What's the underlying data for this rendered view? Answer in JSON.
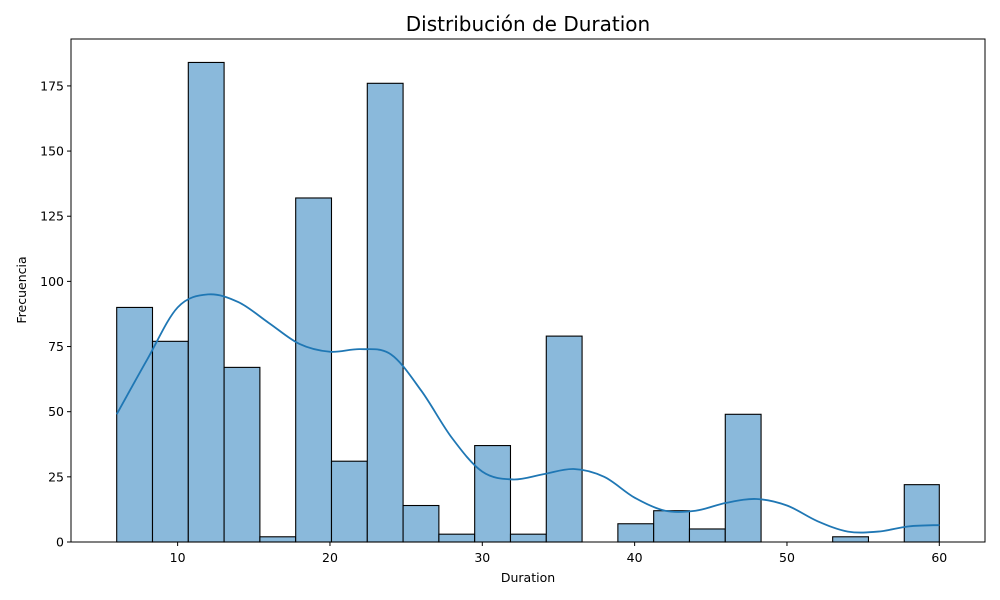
{
  "chart_data": {
    "type": "bar",
    "title": "Distribución de Duration",
    "xlabel": "Duration",
    "ylabel": "Frecuencia",
    "xlim": [
      3.0,
      63.0
    ],
    "ylim": [
      0,
      193
    ],
    "xticks": [
      10,
      20,
      30,
      40,
      50,
      60
    ],
    "yticks": [
      0,
      25,
      50,
      75,
      100,
      125,
      150,
      175
    ],
    "grid": false,
    "bins": [
      {
        "x0": 6.0,
        "x1": 8.35,
        "value": 90
      },
      {
        "x0": 8.35,
        "x1": 10.7,
        "value": 77
      },
      {
        "x0": 10.7,
        "x1": 13.05,
        "value": 184
      },
      {
        "x0": 13.05,
        "x1": 15.4,
        "value": 67
      },
      {
        "x0": 15.4,
        "x1": 17.75,
        "value": 2
      },
      {
        "x0": 17.75,
        "x1": 20.1,
        "value": 132
      },
      {
        "x0": 20.1,
        "x1": 22.45,
        "value": 31
      },
      {
        "x0": 22.45,
        "x1": 24.8,
        "value": 176
      },
      {
        "x0": 24.8,
        "x1": 27.15,
        "value": 14
      },
      {
        "x0": 27.15,
        "x1": 29.5,
        "value": 3
      },
      {
        "x0": 29.5,
        "x1": 31.85,
        "value": 37
      },
      {
        "x0": 31.85,
        "x1": 34.2,
        "value": 3
      },
      {
        "x0": 34.2,
        "x1": 36.55,
        "value": 79
      },
      {
        "x0": 36.55,
        "x1": 38.9,
        "value": 0
      },
      {
        "x0": 38.9,
        "x1": 41.25,
        "value": 7
      },
      {
        "x0": 41.25,
        "x1": 43.6,
        "value": 12
      },
      {
        "x0": 43.6,
        "x1": 45.95,
        "value": 5
      },
      {
        "x0": 45.95,
        "x1": 48.3,
        "value": 49
      },
      {
        "x0": 48.3,
        "x1": 50.65,
        "value": 0
      },
      {
        "x0": 50.65,
        "x1": 53.0,
        "value": 0
      },
      {
        "x0": 53.0,
        "x1": 55.35,
        "value": 2
      },
      {
        "x0": 55.35,
        "x1": 57.7,
        "value": 0
      },
      {
        "x0": 57.7,
        "x1": 60.0,
        "value": 22
      }
    ],
    "kde": {
      "x": [
        6,
        8,
        10,
        12,
        14,
        16,
        18,
        20,
        22,
        24,
        26,
        28,
        30,
        32,
        34,
        36,
        38,
        40,
        42,
        44,
        46,
        48,
        50,
        52,
        54,
        56,
        58,
        60
      ],
      "y": [
        49,
        70,
        90,
        95,
        92,
        84,
        76,
        73,
        74,
        72,
        58,
        40,
        27,
        24,
        26,
        28,
        25,
        17,
        12,
        12,
        15,
        16.5,
        14,
        8,
        4,
        4,
        6,
        6.5
      ]
    },
    "colors": {
      "bar_fill": "#8ab9db",
      "bar_edge": "#000000",
      "kde_line": "#1f77b4"
    }
  }
}
